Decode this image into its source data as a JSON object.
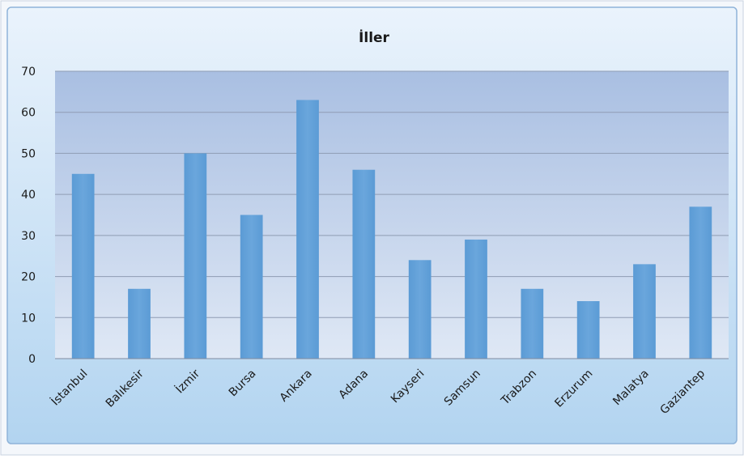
{
  "chart_data": {
    "type": "bar",
    "title": "İller",
    "xlabel": "",
    "ylabel": "",
    "categories": [
      "İstanbul",
      "Balıkesir",
      "İzmir",
      "Bursa",
      "Ankara",
      "Adana",
      "Kayseri",
      "Samsun",
      "Trabzon",
      "Erzurum",
      "Malatya",
      "Gaziantep"
    ],
    "values": [
      45,
      17,
      50,
      35,
      63,
      46,
      24,
      29,
      17,
      14,
      23,
      37
    ],
    "ylim": [
      0,
      70
    ],
    "yticks": [
      "0",
      "10",
      "20",
      "30",
      "40",
      "50",
      "60",
      "70"
    ],
    "grid": true,
    "legend": "none",
    "colors": {
      "bar": "#5b9bd5",
      "frame_top": "#eaf3fc",
      "frame_bottom": "#b2d4f0",
      "plot_top": "#a9bfe2",
      "plot_bottom": "#dfe8f5",
      "grid": "#8f9cb3",
      "text": "#1a1a1a"
    }
  }
}
